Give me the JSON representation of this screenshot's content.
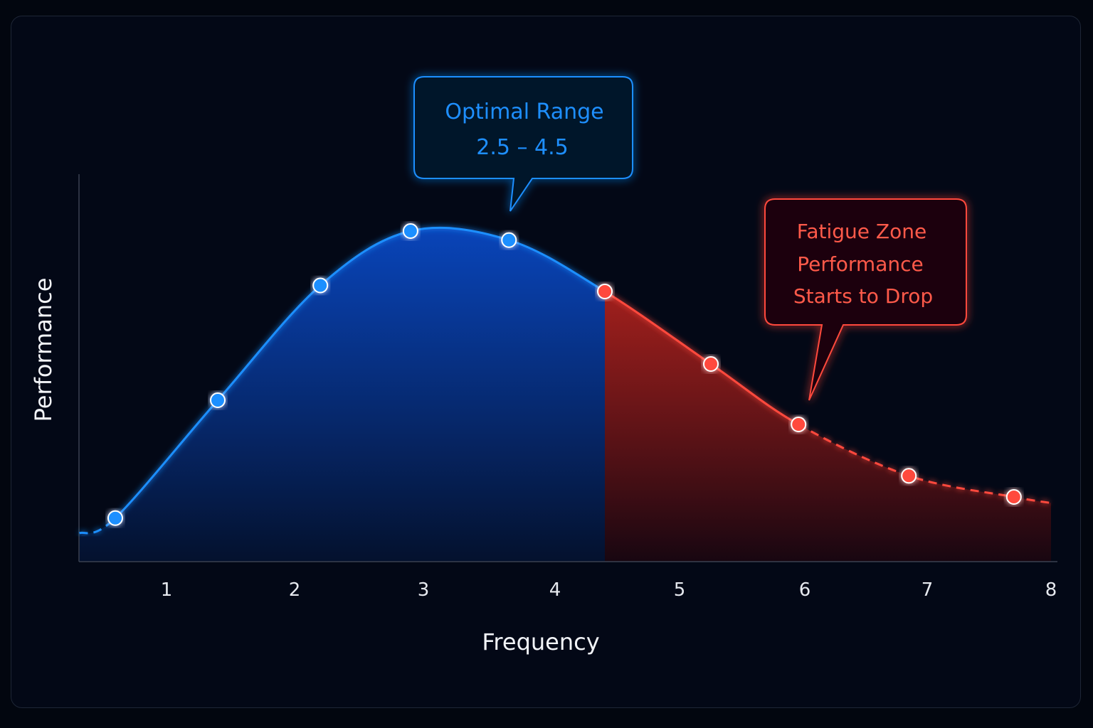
{
  "chart_data": {
    "type": "line",
    "xlabel": "Frequency",
    "ylabel": "Performance",
    "x_ticks": [
      "1",
      "2",
      "3",
      "4",
      "5",
      "6",
      "7",
      "8"
    ],
    "xlim": [
      0.32,
      8.0
    ],
    "curve_peak": 3.15,
    "series": [
      {
        "zone": "optimal",
        "color": "#1e8fff",
        "points": [
          {
            "x": 0.6,
            "y": 0.05
          },
          {
            "x": 1.4,
            "y": 0.44
          },
          {
            "x": 2.2,
            "y": 0.82
          },
          {
            "x": 2.9,
            "y": 1.0
          },
          {
            "x": 3.65,
            "y": 0.97
          }
        ]
      },
      {
        "zone": "fatigue",
        "color": "#ff4a3d",
        "points": [
          {
            "x": 4.4,
            "y": 0.8
          },
          {
            "x": 5.25,
            "y": 0.56
          },
          {
            "x": 5.95,
            "y": 0.36
          },
          {
            "x": 6.85,
            "y": 0.19
          },
          {
            "x": 7.7,
            "y": 0.12
          }
        ]
      }
    ],
    "zone_boundary_x": 4.4,
    "annotations": {
      "optimal": {
        "line1": "Optimal Range",
        "line2": "2.5 – 4.5"
      },
      "fatigue": {
        "line1": "Fatigue Zone",
        "line2": "Performance",
        "line3": "Starts to Drop"
      }
    },
    "grid": false,
    "legend": "none"
  }
}
